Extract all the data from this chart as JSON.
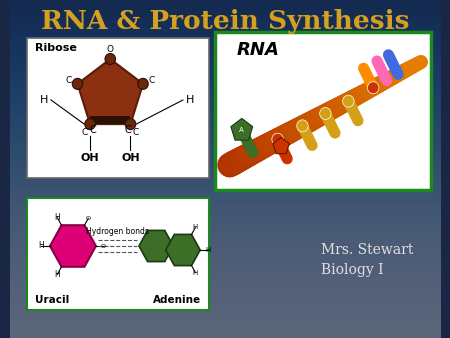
{
  "title": "RNA & Protein Synthesis",
  "title_color": "#D4A020",
  "bg_color_top": "#1a2744",
  "bg_color_bot": "#2a3a5a",
  "subtitle1": "Mrs. Stewart",
  "subtitle2": "Biology I",
  "subtitle_color": "#E0E0E0",
  "ribose_label": "Ribose",
  "hydrogen_label": "Hydrogen bonds",
  "uracil_label": "Uracil",
  "adenine_label": "Adenine",
  "rna_label": "RNA",
  "box1_bg": "#FFFFFF",
  "box1_border": "#666666",
  "box2_bg": "#FFFFFF",
  "box2_border": "#1a8a1a",
  "box3_bg": "#FFFFFF",
  "box3_border": "#1a8a1a",
  "ribose_color": "#8B3010",
  "ribose_dark": "#5a1e08",
  "uracil_color": "#DD0077",
  "adenine_color": "#3d6e28"
}
